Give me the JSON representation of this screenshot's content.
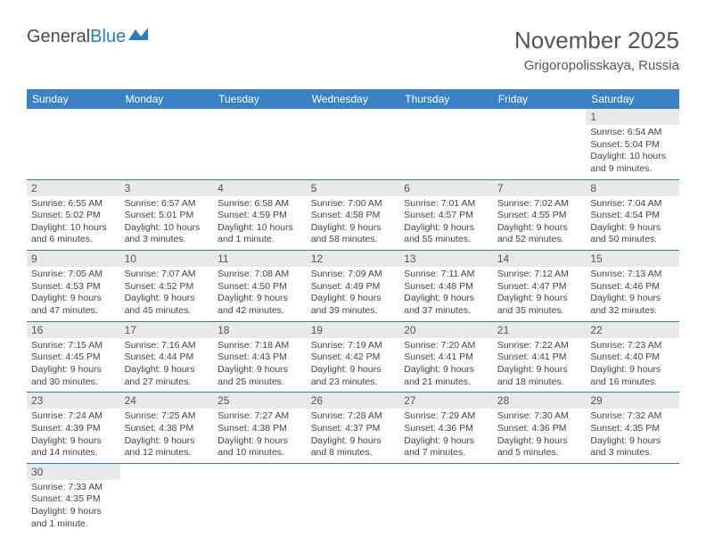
{
  "logo": {
    "text1": "General",
    "text2": "Blue"
  },
  "title": "November 2025",
  "location": "Grigoropolisskaya, Russia",
  "weekdays": [
    "Sunday",
    "Monday",
    "Tuesday",
    "Wednesday",
    "Thursday",
    "Friday",
    "Saturday"
  ],
  "colors": {
    "header_bg": "#3b82c4",
    "header_text": "#ffffff",
    "daynum_bg": "#e9e9e9",
    "rule": "#2d7bbf",
    "logo_blue": "#2d7bbf",
    "body_text": "#444444"
  },
  "rows": [
    [
      null,
      null,
      null,
      null,
      null,
      null,
      {
        "n": "1",
        "sr": "Sunrise: 6:54 AM",
        "ss": "Sunset: 5:04 PM",
        "dl": "Daylight: 10 hours and 9 minutes."
      }
    ],
    [
      {
        "n": "2",
        "sr": "Sunrise: 6:55 AM",
        "ss": "Sunset: 5:02 PM",
        "dl": "Daylight: 10 hours and 6 minutes."
      },
      {
        "n": "3",
        "sr": "Sunrise: 6:57 AM",
        "ss": "Sunset: 5:01 PM",
        "dl": "Daylight: 10 hours and 3 minutes."
      },
      {
        "n": "4",
        "sr": "Sunrise: 6:58 AM",
        "ss": "Sunset: 4:59 PM",
        "dl": "Daylight: 10 hours and 1 minute."
      },
      {
        "n": "5",
        "sr": "Sunrise: 7:00 AM",
        "ss": "Sunset: 4:58 PM",
        "dl": "Daylight: 9 hours and 58 minutes."
      },
      {
        "n": "6",
        "sr": "Sunrise: 7:01 AM",
        "ss": "Sunset: 4:57 PM",
        "dl": "Daylight: 9 hours and 55 minutes."
      },
      {
        "n": "7",
        "sr": "Sunrise: 7:02 AM",
        "ss": "Sunset: 4:55 PM",
        "dl": "Daylight: 9 hours and 52 minutes."
      },
      {
        "n": "8",
        "sr": "Sunrise: 7:04 AM",
        "ss": "Sunset: 4:54 PM",
        "dl": "Daylight: 9 hours and 50 minutes."
      }
    ],
    [
      {
        "n": "9",
        "sr": "Sunrise: 7:05 AM",
        "ss": "Sunset: 4:53 PM",
        "dl": "Daylight: 9 hours and 47 minutes."
      },
      {
        "n": "10",
        "sr": "Sunrise: 7:07 AM",
        "ss": "Sunset: 4:52 PM",
        "dl": "Daylight: 9 hours and 45 minutes."
      },
      {
        "n": "11",
        "sr": "Sunrise: 7:08 AM",
        "ss": "Sunset: 4:50 PM",
        "dl": "Daylight: 9 hours and 42 minutes."
      },
      {
        "n": "12",
        "sr": "Sunrise: 7:09 AM",
        "ss": "Sunset: 4:49 PM",
        "dl": "Daylight: 9 hours and 39 minutes."
      },
      {
        "n": "13",
        "sr": "Sunrise: 7:11 AM",
        "ss": "Sunset: 4:48 PM",
        "dl": "Daylight: 9 hours and 37 minutes."
      },
      {
        "n": "14",
        "sr": "Sunrise: 7:12 AM",
        "ss": "Sunset: 4:47 PM",
        "dl": "Daylight: 9 hours and 35 minutes."
      },
      {
        "n": "15",
        "sr": "Sunrise: 7:13 AM",
        "ss": "Sunset: 4:46 PM",
        "dl": "Daylight: 9 hours and 32 minutes."
      }
    ],
    [
      {
        "n": "16",
        "sr": "Sunrise: 7:15 AM",
        "ss": "Sunset: 4:45 PM",
        "dl": "Daylight: 9 hours and 30 minutes."
      },
      {
        "n": "17",
        "sr": "Sunrise: 7:16 AM",
        "ss": "Sunset: 4:44 PM",
        "dl": "Daylight: 9 hours and 27 minutes."
      },
      {
        "n": "18",
        "sr": "Sunrise: 7:18 AM",
        "ss": "Sunset: 4:43 PM",
        "dl": "Daylight: 9 hours and 25 minutes."
      },
      {
        "n": "19",
        "sr": "Sunrise: 7:19 AM",
        "ss": "Sunset: 4:42 PM",
        "dl": "Daylight: 9 hours and 23 minutes."
      },
      {
        "n": "20",
        "sr": "Sunrise: 7:20 AM",
        "ss": "Sunset: 4:41 PM",
        "dl": "Daylight: 9 hours and 21 minutes."
      },
      {
        "n": "21",
        "sr": "Sunrise: 7:22 AM",
        "ss": "Sunset: 4:41 PM",
        "dl": "Daylight: 9 hours and 18 minutes."
      },
      {
        "n": "22",
        "sr": "Sunrise: 7:23 AM",
        "ss": "Sunset: 4:40 PM",
        "dl": "Daylight: 9 hours and 16 minutes."
      }
    ],
    [
      {
        "n": "23",
        "sr": "Sunrise: 7:24 AM",
        "ss": "Sunset: 4:39 PM",
        "dl": "Daylight: 9 hours and 14 minutes."
      },
      {
        "n": "24",
        "sr": "Sunrise: 7:25 AM",
        "ss": "Sunset: 4:38 PM",
        "dl": "Daylight: 9 hours and 12 minutes."
      },
      {
        "n": "25",
        "sr": "Sunrise: 7:27 AM",
        "ss": "Sunset: 4:38 PM",
        "dl": "Daylight: 9 hours and 10 minutes."
      },
      {
        "n": "26",
        "sr": "Sunrise: 7:28 AM",
        "ss": "Sunset: 4:37 PM",
        "dl": "Daylight: 9 hours and 8 minutes."
      },
      {
        "n": "27",
        "sr": "Sunrise: 7:29 AM",
        "ss": "Sunset: 4:36 PM",
        "dl": "Daylight: 9 hours and 7 minutes."
      },
      {
        "n": "28",
        "sr": "Sunrise: 7:30 AM",
        "ss": "Sunset: 4:36 PM",
        "dl": "Daylight: 9 hours and 5 minutes."
      },
      {
        "n": "29",
        "sr": "Sunrise: 7:32 AM",
        "ss": "Sunset: 4:35 PM",
        "dl": "Daylight: 9 hours and 3 minutes."
      }
    ],
    [
      {
        "n": "30",
        "sr": "Sunrise: 7:33 AM",
        "ss": "Sunset: 4:35 PM",
        "dl": "Daylight: 9 hours and 1 minute."
      },
      null,
      null,
      null,
      null,
      null,
      null
    ]
  ]
}
